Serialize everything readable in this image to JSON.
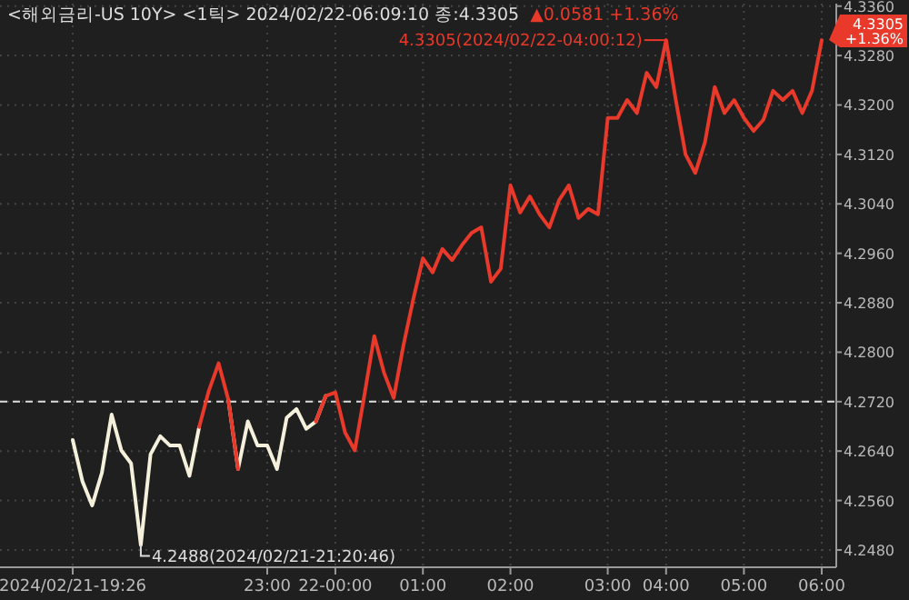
{
  "chart_data": {
    "type": "line",
    "title": "<해외금리-US 10Y> <1틱> 2024/02/22-06:09:10 종:4.3305",
    "subtitle": "▲0.0581 +1.36%",
    "categories": [
      "2024/02/21-19:26",
      null,
      null,
      null,
      null,
      null,
      null,
      null,
      null,
      null,
      null,
      null,
      null,
      null,
      null,
      null,
      null,
      null,
      null,
      null,
      "23:00",
      null,
      null,
      null,
      null,
      null,
      null,
      "22-00:00",
      null,
      null,
      null,
      null,
      null,
      null,
      null,
      null,
      "01:00",
      null,
      null,
      null,
      null,
      null,
      null,
      null,
      null,
      "02:00",
      null,
      null,
      null,
      null,
      null,
      null,
      null,
      null,
      null,
      "03:00",
      null,
      null,
      null,
      null,
      null,
      "04:00",
      null,
      null,
      null,
      null,
      null,
      null,
      null,
      "05:00",
      null,
      null,
      null,
      null,
      null,
      null,
      null,
      "06:00"
    ],
    "series": [
      {
        "color": "#f5f0dc",
        "values": [
          4.2658,
          4.2591,
          4.2552,
          4.2605,
          4.2699,
          4.2641,
          4.262,
          4.2488,
          4.2635,
          4.2664,
          4.2649,
          4.2649,
          4.26,
          4.2679,
          null,
          null,
          4.2723,
          4.2611,
          4.2688,
          4.2649,
          4.2649,
          4.2611,
          4.2694,
          4.2708,
          4.2676,
          4.2688,
          4.2729,
          null,
          null,
          null,
          null,
          null,
          null,
          null,
          null,
          null,
          null,
          null,
          null,
          null,
          null,
          null,
          null,
          null,
          null,
          null,
          null,
          null,
          null,
          null,
          null,
          null,
          null,
          null,
          null,
          null,
          null,
          null,
          null,
          null,
          null,
          null,
          null,
          null,
          null,
          null,
          null,
          null,
          null,
          null,
          null,
          null,
          null,
          null,
          null,
          null,
          null,
          null
        ]
      },
      {
        "color": "#e8392a",
        "values": [
          null,
          null,
          null,
          null,
          null,
          null,
          null,
          null,
          null,
          null,
          null,
          null,
          null,
          4.2679,
          4.2738,
          4.2782,
          4.2723,
          4.2611,
          null,
          null,
          null,
          null,
          null,
          null,
          null,
          4.2688,
          4.2729,
          4.2735,
          4.267,
          4.2641,
          4.2732,
          4.2826,
          4.2767,
          4.2726,
          4.2811,
          4.2885,
          4.2952,
          4.2929,
          4.2967,
          4.2949,
          4.2973,
          4.2993,
          4.3002,
          4.2914,
          4.2935,
          4.307,
          4.3026,
          4.3052,
          4.3023,
          4.3002,
          4.3046,
          4.307,
          4.3017,
          4.3032,
          4.3023,
          4.3179,
          4.3179,
          4.3208,
          4.3187,
          4.3252,
          4.3229,
          4.3305,
          4.3208,
          4.312,
          4.309,
          4.314,
          4.3229,
          4.3187,
          4.3208,
          4.3179,
          4.3158,
          4.3176,
          4.3223,
          4.3208,
          4.3223,
          4.3187,
          4.3223,
          4.3305
        ]
      }
    ],
    "ylim": [
      4.2452,
      4.3364
    ],
    "yticks": [
      {
        "value": 4.248,
        "label": "4.2480"
      },
      {
        "value": 4.256,
        "label": "4.2560"
      },
      {
        "value": 4.264,
        "label": "4.2640"
      },
      {
        "value": 4.272,
        "label": "4.2720"
      },
      {
        "value": 4.28,
        "label": "4.2800"
      },
      {
        "value": 4.288,
        "label": "4.2880"
      },
      {
        "value": 4.296,
        "label": "4.2960"
      },
      {
        "value": 4.304,
        "label": "4.3040"
      },
      {
        "value": 4.312,
        "label": "4.3120"
      },
      {
        "value": 4.32,
        "label": "4.3200"
      },
      {
        "value": 4.328,
        "label": "4.3280"
      },
      {
        "value": 4.336,
        "label": "4.3360"
      }
    ],
    "ref_lines": [
      {
        "axis": "y",
        "value": 4.272,
        "color": "#dddddd",
        "line_style": "dashed"
      }
    ],
    "annotations": [
      {
        "text": "4.3305(2024/02/22-04:00:12)",
        "x": "04:00",
        "y": 4.3305
      },
      "4.2488(2024/02/21-21:20:46)",
      "4.3305 +1.36%"
    ],
    "grid": true,
    "marker": "none",
    "line_style": "solid"
  }
}
